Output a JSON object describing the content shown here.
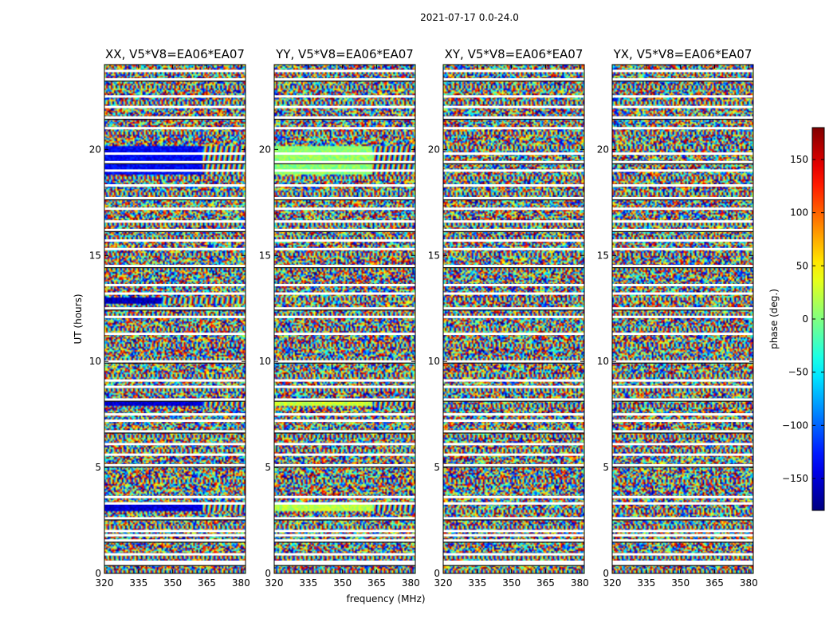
{
  "chart_data": {
    "type": "heatmap",
    "suptitle": "2021-07-17 0.0-24.0",
    "xlabel": "frequency (MHz)",
    "ylabel": "UT (hours)",
    "colorbar_label": "phase (deg.)",
    "xlim": [
      320,
      382
    ],
    "ylim": [
      0,
      24
    ],
    "clim": [
      -180,
      180
    ],
    "colormap": "jet",
    "x_ticks": [
      320,
      335,
      350,
      365,
      380
    ],
    "y_ticks": [
      0,
      5,
      10,
      15,
      20
    ],
    "colorbar_ticks": [
      -150,
      -100,
      -50,
      0,
      50,
      100,
      150
    ],
    "panels": [
      {
        "title": "XX, V5*V8=EA06*EA07",
        "show_ylabel": true
      },
      {
        "title": "YY, V5*V8=EA06*EA07",
        "show_ylabel": false
      },
      {
        "title": "XY, V5*V8=EA06*EA07",
        "show_ylabel": false
      },
      {
        "title": "YX, V5*V8=EA06*EA07",
        "show_ylabel": false
      }
    ],
    "flagged_hours": [
      0.45,
      0.55,
      0.9,
      1.55,
      1.8,
      2.0,
      2.6,
      3.3,
      3.6,
      5.1,
      5.6,
      6.1,
      6.7,
      7.2,
      7.5,
      8.2,
      8.8,
      9.1,
      10.0,
      11.3,
      12.1,
      12.5,
      13.2,
      13.6,
      14.5,
      15.3,
      15.7,
      16.2,
      16.6,
      17.2,
      17.7,
      18.3,
      19.0,
      19.4,
      19.8,
      21.0,
      21.5,
      22.0,
      22.5,
      23.3,
      23.7
    ],
    "coherent_bands": [
      {
        "panel": 0,
        "y0": 2.9,
        "y1": 3.3,
        "x0": 320,
        "x1": 363,
        "phase": -150
      },
      {
        "panel": 0,
        "y0": 7.9,
        "y1": 8.15,
        "x0": 320,
        "x1": 363,
        "phase": -150
      },
      {
        "panel": 0,
        "y0": 12.7,
        "y1": 13.0,
        "x0": 320,
        "x1": 345,
        "phase": -160
      },
      {
        "panel": 0,
        "y0": 18.8,
        "y1": 20.2,
        "x0": 320,
        "x1": 363,
        "phase": -135
      },
      {
        "panel": 1,
        "y0": 2.9,
        "y1": 3.3,
        "x0": 320,
        "x1": 363,
        "phase": 20
      },
      {
        "panel": 1,
        "y0": 7.9,
        "y1": 8.15,
        "x0": 320,
        "x1": 363,
        "phase": 25
      },
      {
        "panel": 1,
        "y0": 18.8,
        "y1": 20.2,
        "x0": 320,
        "x1": 363,
        "phase": 5
      }
    ]
  }
}
